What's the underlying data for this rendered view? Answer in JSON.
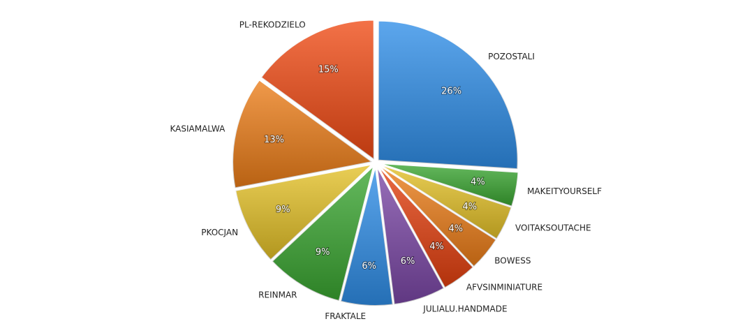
{
  "chart_data": {
    "type": "pie",
    "categories": [
      "POZOSTALI",
      "MAKEITYOURSELF",
      "VOITAKSOUTACHE",
      "BOWESS",
      "AFVSINMINIATURE",
      "JULIALU.HANDMADE",
      "FRAKTALE",
      "REINMAR",
      "PKOCJAN",
      "KASIAMALWA",
      "PL-REKODZIELO"
    ],
    "values": [
      26,
      4,
      4,
      4,
      4,
      6,
      6,
      9,
      9,
      13,
      15
    ],
    "value_labels": [
      "26%",
      "4%",
      "4%",
      "4%",
      "4%",
      "6%",
      "6%",
      "9%",
      "9%",
      "13%",
      "15%"
    ],
    "colors": [
      "#2f8ee8",
      "#3aa631",
      "#e4c127",
      "#ec7d18",
      "#e4400f",
      "#7b47a6",
      "#2f8ee8",
      "#3aa631",
      "#e4c127",
      "#ec7d18",
      "#f04a14"
    ]
  }
}
